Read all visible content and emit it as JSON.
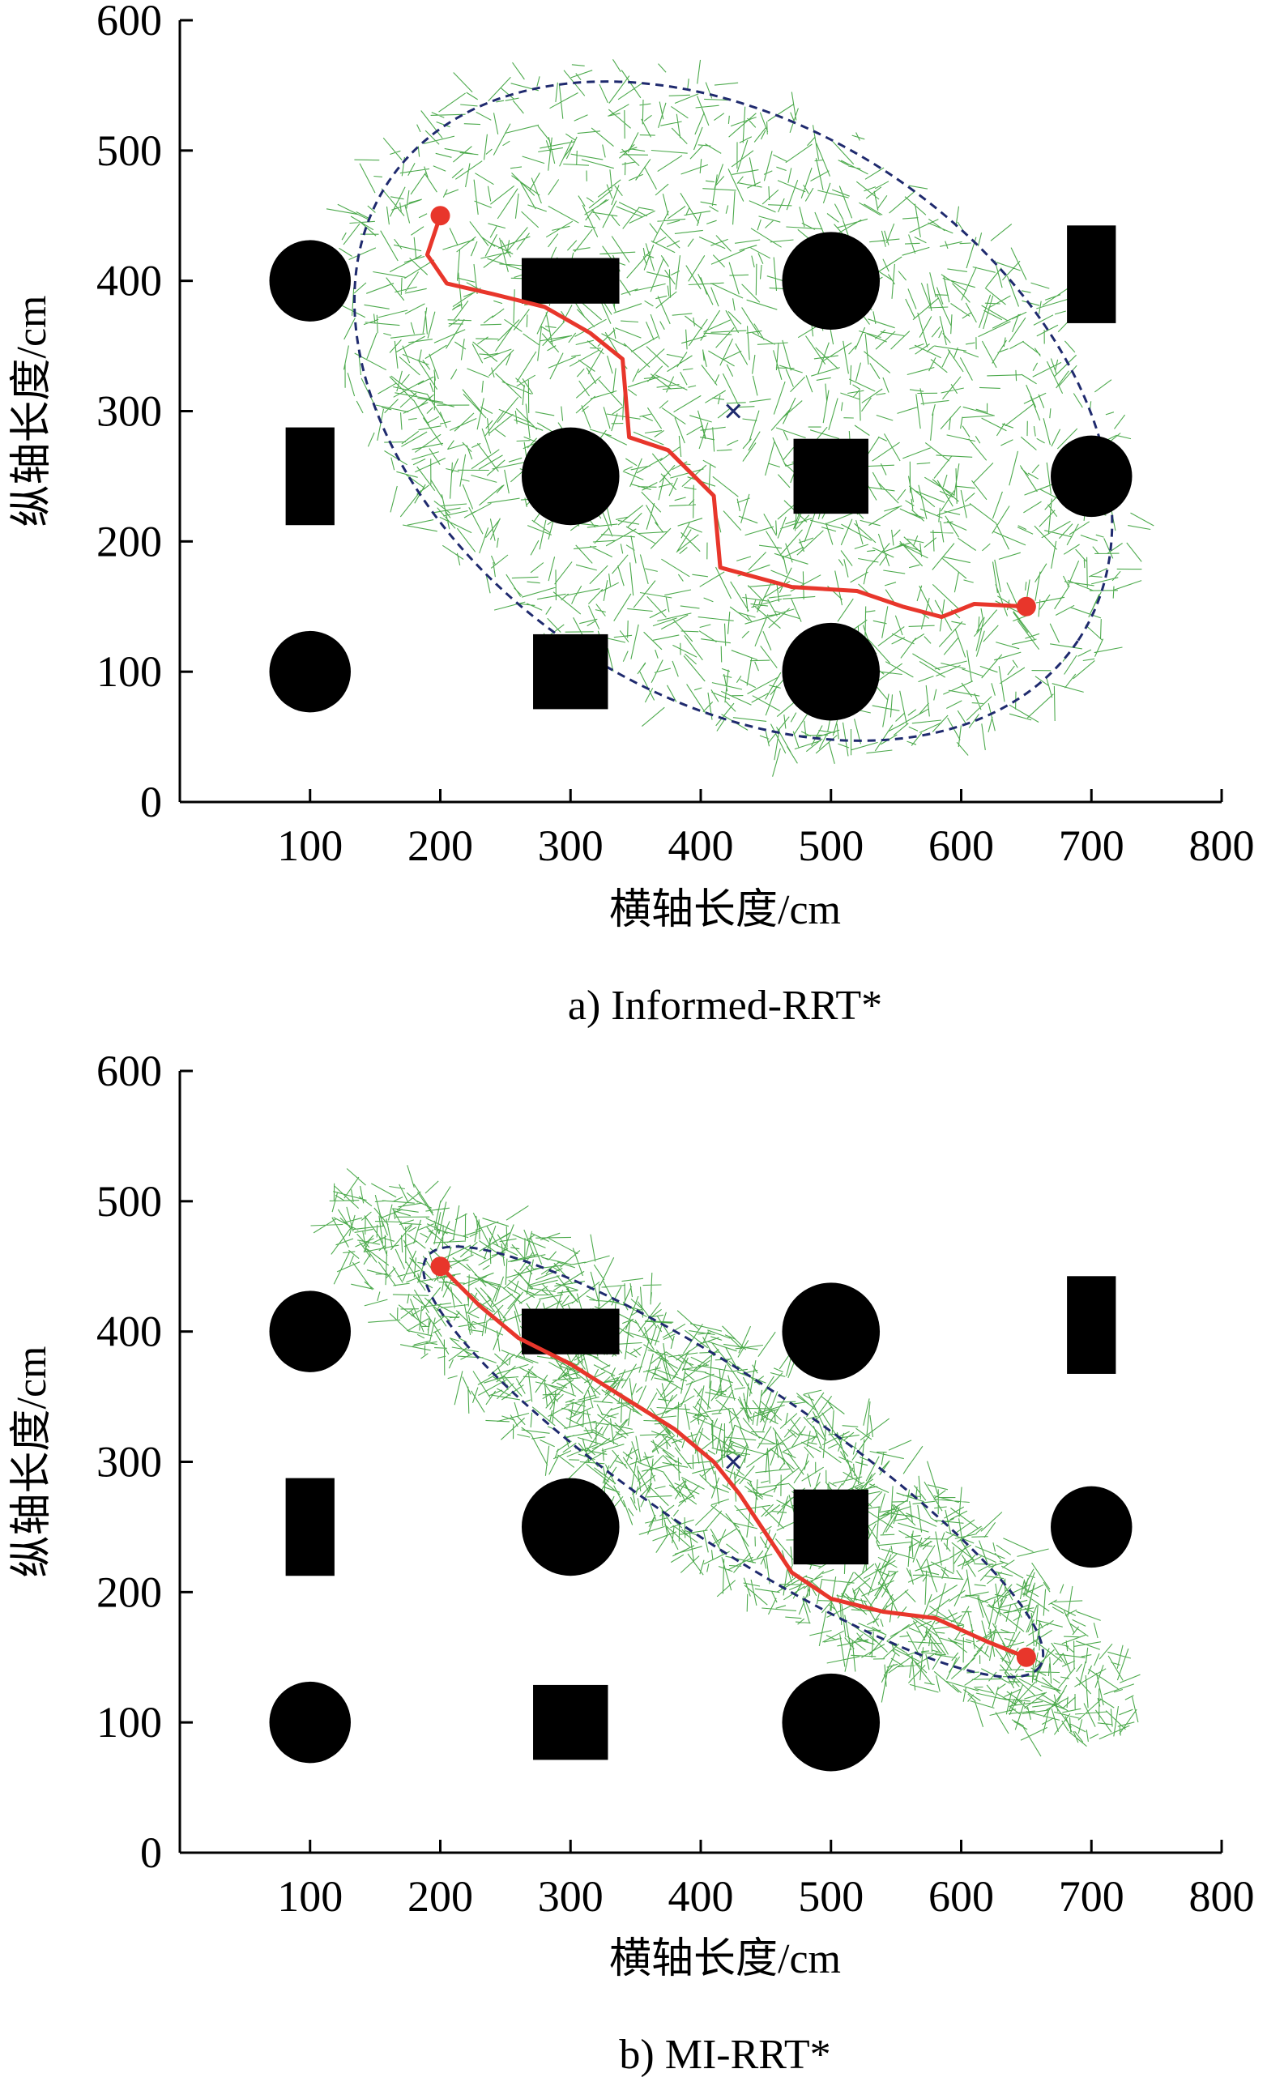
{
  "chart_data": [
    {
      "type": "scatter",
      "caption": "a) Informed-RRT*",
      "xlabel": "横轴长度/cm",
      "ylabel": "纵轴长度/cm",
      "xlim": [
        0,
        800
      ],
      "ylim": [
        0,
        600
      ],
      "xticks": [
        "100",
        "200",
        "300",
        "400",
        "500",
        "600",
        "700",
        "800"
      ],
      "yticks": [
        "0",
        "100",
        "200",
        "300",
        "400",
        "500",
        "600"
      ],
      "grid": false,
      "colors": {
        "tree": "#2e9b2e",
        "path": "#e8362b",
        "ellipse": "#1f2a6e",
        "obstacle": "#000000"
      },
      "obstacles": [
        {
          "shape": "circle",
          "cx": 100,
          "cy": 400,
          "r": 25
        },
        {
          "shape": "rect",
          "cx": 300,
          "cy": 400,
          "w": 60,
          "h": 28
        },
        {
          "shape": "circle",
          "cx": 500,
          "cy": 400,
          "r": 30
        },
        {
          "shape": "rect",
          "cx": 700,
          "cy": 405,
          "w": 30,
          "h": 60
        },
        {
          "shape": "rect",
          "cx": 100,
          "cy": 250,
          "w": 30,
          "h": 60
        },
        {
          "shape": "circle",
          "cx": 300,
          "cy": 250,
          "r": 30
        },
        {
          "shape": "rect",
          "cx": 500,
          "cy": 250,
          "w": 46,
          "h": 46
        },
        {
          "shape": "circle",
          "cx": 700,
          "cy": 250,
          "r": 25
        },
        {
          "shape": "circle",
          "cx": 100,
          "cy": 100,
          "r": 25
        },
        {
          "shape": "rect",
          "cx": 300,
          "cy": 100,
          "w": 46,
          "h": 46
        },
        {
          "shape": "circle",
          "cx": 500,
          "cy": 100,
          "r": 30
        }
      ],
      "start": [
        200,
        450
      ],
      "goal": [
        650,
        150
      ],
      "ellipse": {
        "center": [
          425,
          300
        ],
        "rx": 318,
        "ry": 218,
        "rotation_deg": -33.7
      },
      "tree_seed": 7,
      "tree_density": 1700,
      "tree_spread": 1.05,
      "path": [
        [
          200,
          450
        ],
        [
          190,
          420
        ],
        [
          205,
          398
        ],
        [
          240,
          390
        ],
        [
          280,
          380
        ],
        [
          315,
          360
        ],
        [
          340,
          340
        ],
        [
          345,
          280
        ],
        [
          375,
          270
        ],
        [
          410,
          235
        ],
        [
          415,
          180
        ],
        [
          470,
          165
        ],
        [
          520,
          162
        ],
        [
          555,
          150
        ],
        [
          585,
          142
        ],
        [
          610,
          152
        ],
        [
          650,
          150
        ]
      ]
    },
    {
      "type": "scatter",
      "caption": "b) MI-RRT*",
      "xlabel": "横轴长度/cm",
      "ylabel": "纵轴长度/cm",
      "xlim": [
        0,
        800
      ],
      "ylim": [
        0,
        600
      ],
      "xticks": [
        "100",
        "200",
        "300",
        "400",
        "500",
        "600",
        "700",
        "800"
      ],
      "yticks": [
        "0",
        "100",
        "200",
        "300",
        "400",
        "500",
        "600"
      ],
      "grid": false,
      "colors": {
        "tree": "#2e9b2e",
        "path": "#e8362b",
        "ellipse": "#1f2a6e",
        "obstacle": "#000000"
      },
      "obstacles": [
        {
          "shape": "circle",
          "cx": 100,
          "cy": 400,
          "r": 25
        },
        {
          "shape": "rect",
          "cx": 300,
          "cy": 400,
          "w": 60,
          "h": 28
        },
        {
          "shape": "circle",
          "cx": 500,
          "cy": 400,
          "r": 30
        },
        {
          "shape": "rect",
          "cx": 700,
          "cy": 405,
          "w": 30,
          "h": 60
        },
        {
          "shape": "rect",
          "cx": 100,
          "cy": 250,
          "w": 30,
          "h": 60
        },
        {
          "shape": "circle",
          "cx": 300,
          "cy": 250,
          "r": 30
        },
        {
          "shape": "rect",
          "cx": 500,
          "cy": 250,
          "w": 46,
          "h": 46
        },
        {
          "shape": "circle",
          "cx": 700,
          "cy": 250,
          "r": 25
        },
        {
          "shape": "circle",
          "cx": 100,
          "cy": 100,
          "r": 25
        },
        {
          "shape": "rect",
          "cx": 300,
          "cy": 100,
          "w": 46,
          "h": 46
        },
        {
          "shape": "circle",
          "cx": 500,
          "cy": 100,
          "r": 30
        }
      ],
      "start": [
        200,
        450
      ],
      "goal": [
        650,
        150
      ],
      "ellipse": {
        "center": [
          425,
          300
        ],
        "rx": 283,
        "ry": 62,
        "rotation_deg": -33.7
      },
      "tree_seed": 13,
      "tree_density": 1700,
      "tree_spread": 1.3,
      "path": [
        [
          200,
          450
        ],
        [
          230,
          420
        ],
        [
          260,
          395
        ],
        [
          300,
          375
        ],
        [
          340,
          350
        ],
        [
          380,
          325
        ],
        [
          410,
          300
        ],
        [
          430,
          275
        ],
        [
          450,
          245
        ],
        [
          470,
          215
        ],
        [
          500,
          195
        ],
        [
          540,
          185
        ],
        [
          580,
          180
        ],
        [
          620,
          162
        ],
        [
          650,
          150
        ]
      ]
    }
  ]
}
